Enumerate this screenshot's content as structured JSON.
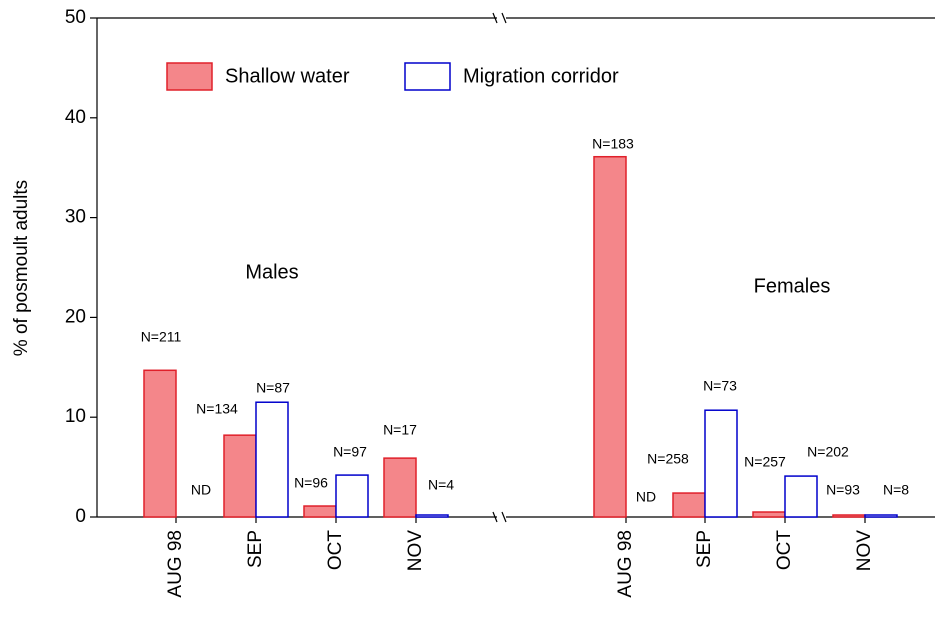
{
  "chart_data": {
    "type": "bar",
    "ylabel": "% of posmoult adults",
    "ylim": [
      0,
      50
    ],
    "yticks": [
      0,
      10,
      20,
      30,
      40,
      50
    ],
    "categories": [
      "AUG 98",
      "SEP",
      "OCT",
      "NOV",
      "AUG 98",
      "SEP",
      "OCT",
      "NOV"
    ],
    "annotations": [
      "Males",
      "Females"
    ],
    "series": [
      {
        "name": "Shallow water",
        "color": "#f4868a",
        "edgecolor": "#e0202a",
        "values": [
          14.7,
          8.2,
          1.1,
          5.9,
          36.1,
          2.4,
          0.5,
          0.2
        ],
        "sample_labels": [
          "N=211",
          "N=134",
          "N=96",
          "N=17",
          "N=183",
          "N=258",
          "N=257",
          "N=93"
        ]
      },
      {
        "name": "Migration corridor",
        "color": "#ffffff",
        "edgecolor": "#0000cc",
        "values": [
          null,
          11.5,
          4.2,
          0.2,
          null,
          10.7,
          4.1,
          0.2
        ],
        "sample_labels": [
          "ND",
          "N=87",
          "N=97",
          "N=4",
          "ND",
          "N=73",
          "N=202",
          "N=8"
        ]
      }
    ]
  }
}
